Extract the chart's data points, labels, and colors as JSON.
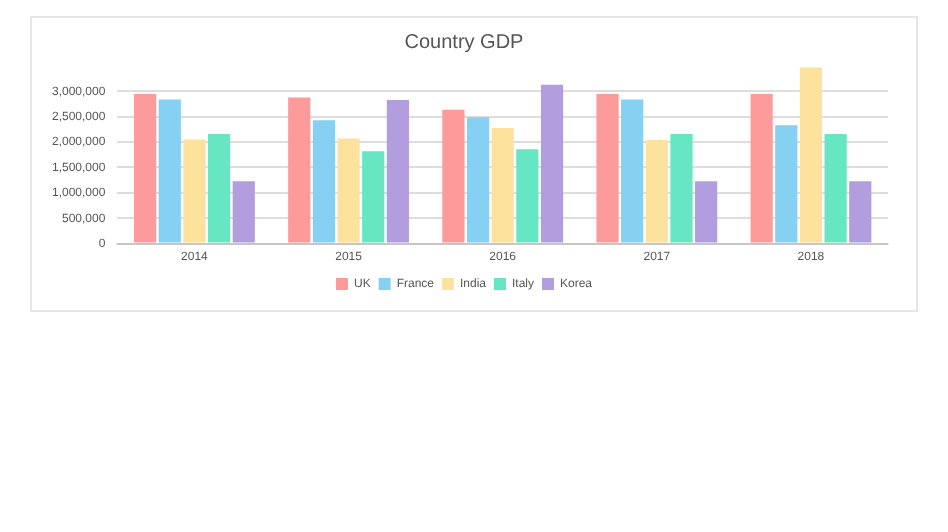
{
  "chart_data": {
    "type": "bar",
    "title": "Country GDP",
    "categories": [
      "2014",
      "2015",
      "2016",
      "2017",
      "2018"
    ],
    "series": [
      {
        "name": "UK",
        "color": "#fd9a9a",
        "values": [
          2950000,
          2880000,
          2640000,
          2950000,
          2950000
        ]
      },
      {
        "name": "France",
        "color": "#85d0f3",
        "values": [
          2840000,
          2430000,
          2490000,
          2840000,
          2330000
        ]
      },
      {
        "name": "India",
        "color": "#fde29e",
        "values": [
          2050000,
          2070000,
          2280000,
          2040000,
          3470000
        ]
      },
      {
        "name": "Italy",
        "color": "#66e6c2",
        "values": [
          2160000,
          1820000,
          1860000,
          2160000,
          2160000
        ]
      },
      {
        "name": "Korea",
        "color": "#b29ddf",
        "values": [
          1230000,
          2830000,
          3130000,
          1230000,
          1230000
        ]
      }
    ],
    "ylim": [
      0,
      3500000
    ],
    "yticks": [
      0,
      {
        "value": 500000,
        "label": "500,000"
      },
      {
        "value": 1000000,
        "label": "1,000,000"
      },
      {
        "value": 1500000,
        "label": "1,500,000"
      },
      {
        "value": 2000000,
        "label": "2,000,000"
      },
      {
        "value": 2500000,
        "label": "2,500,000"
      },
      {
        "value": 3000000,
        "label": "3,000,000"
      }
    ],
    "grid": "y",
    "legend": "bottom"
  }
}
